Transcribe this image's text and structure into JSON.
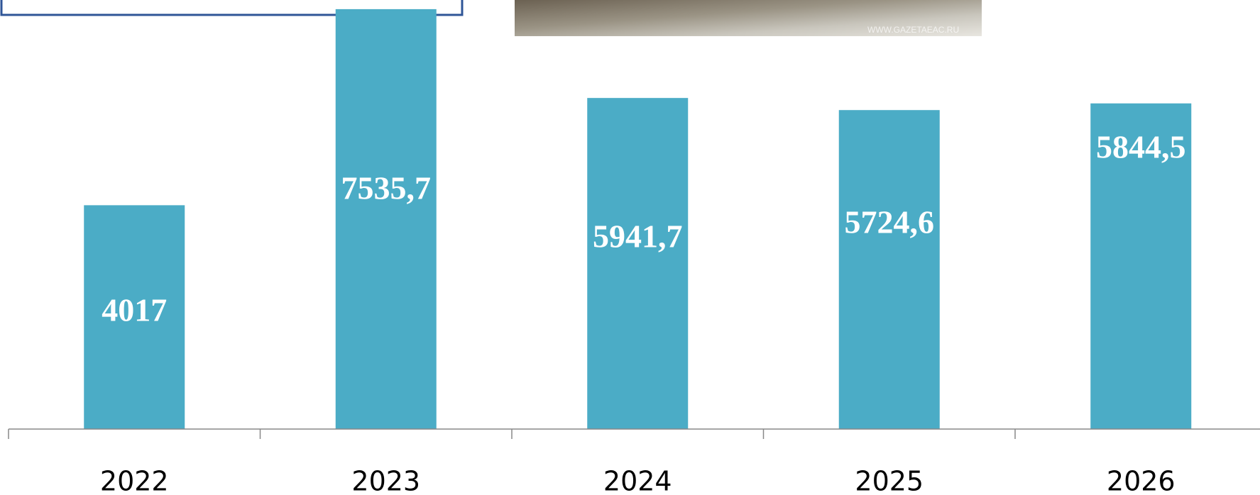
{
  "chart_data": {
    "type": "bar",
    "categories": [
      "2022",
      "2023",
      "2024",
      "2025",
      "2026"
    ],
    "values": [
      4017,
      7535.7,
      5941.7,
      5724.6,
      5844.5
    ],
    "value_labels": [
      "4017",
      "7535,7",
      "5941,7",
      "5724,6",
      "5844,5"
    ],
    "color": "#4bacc6",
    "ylim": [
      0,
      7700
    ]
  },
  "image": {
    "watermark": "WWW.GAZETAEAC.RU"
  }
}
